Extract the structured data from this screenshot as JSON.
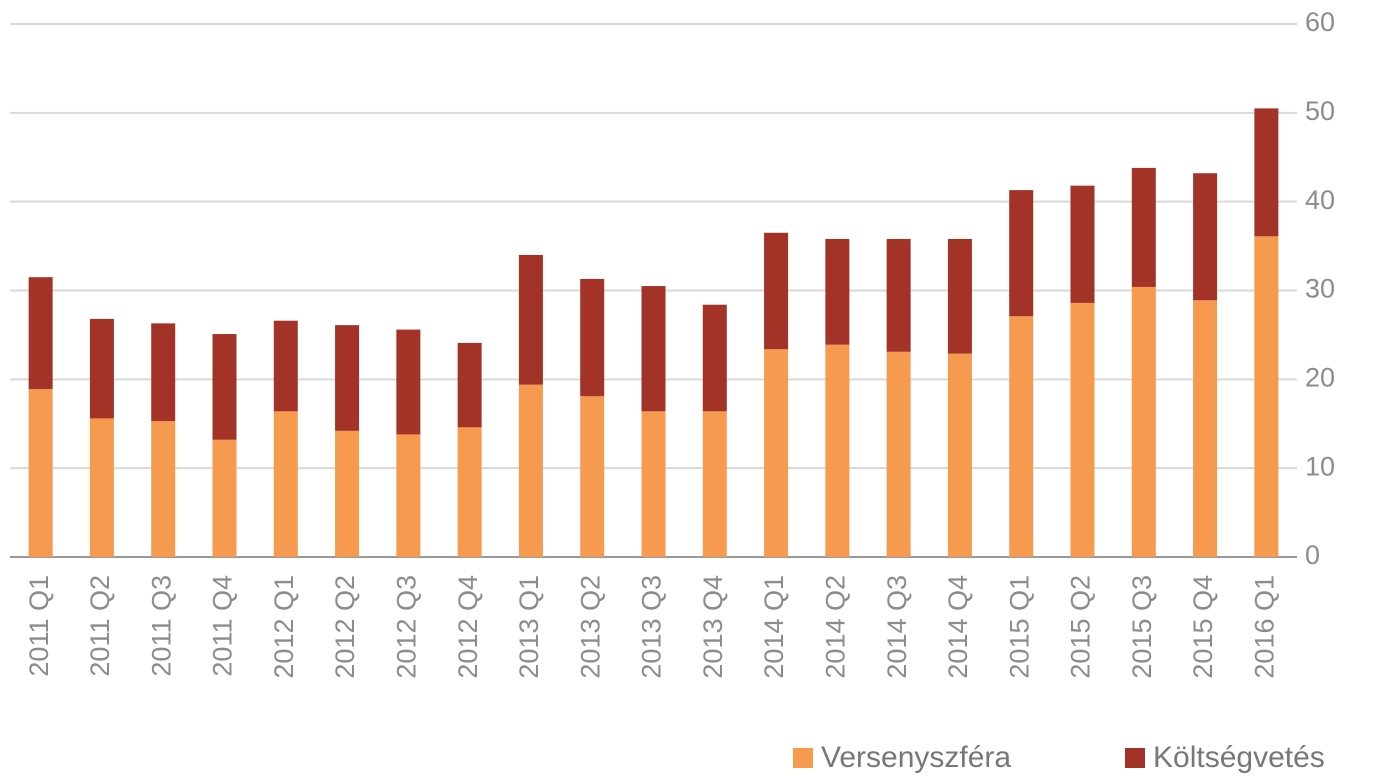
{
  "chart_data": {
    "type": "stacked_bar",
    "categories": [
      "2011 Q1",
      "2011 Q2",
      "2011 Q3",
      "2011 Q4",
      "2012 Q1",
      "2012 Q2",
      "2012 Q3",
      "2012 Q4",
      "2013 Q1",
      "2013 Q2",
      "2013 Q3",
      "2013 Q4",
      "2014 Q1",
      "2014 Q2",
      "2014 Q3",
      "2014 Q4",
      "2015 Q1",
      "2015 Q2",
      "2015 Q3",
      "2015 Q4",
      "2016 Q1"
    ],
    "series": [
      {
        "name": "Versenyszféra",
        "color": "#f59a4e",
        "values": [
          18.9,
          15.6,
          15.3,
          13.2,
          16.4,
          14.2,
          13.8,
          14.6,
          19.4,
          18.1,
          16.4,
          16.4,
          23.4,
          23.9,
          23.1,
          22.9,
          27.1,
          28.6,
          30.4,
          28.9,
          36.1
        ]
      },
      {
        "name": "Költségvetés",
        "color": "#a33327",
        "values": [
          12.6,
          11.2,
          11.0,
          11.9,
          10.2,
          11.9,
          11.8,
          9.5,
          14.6,
          13.2,
          14.1,
          12.0,
          13.1,
          11.9,
          12.7,
          12.9,
          14.2,
          13.2,
          13.4,
          14.3,
          14.4
        ]
      }
    ],
    "ylim": [
      0,
      60
    ],
    "yticks": [
      0,
      10,
      20,
      30,
      40,
      50,
      60
    ],
    "grid": true,
    "legend": "bottom-right"
  }
}
